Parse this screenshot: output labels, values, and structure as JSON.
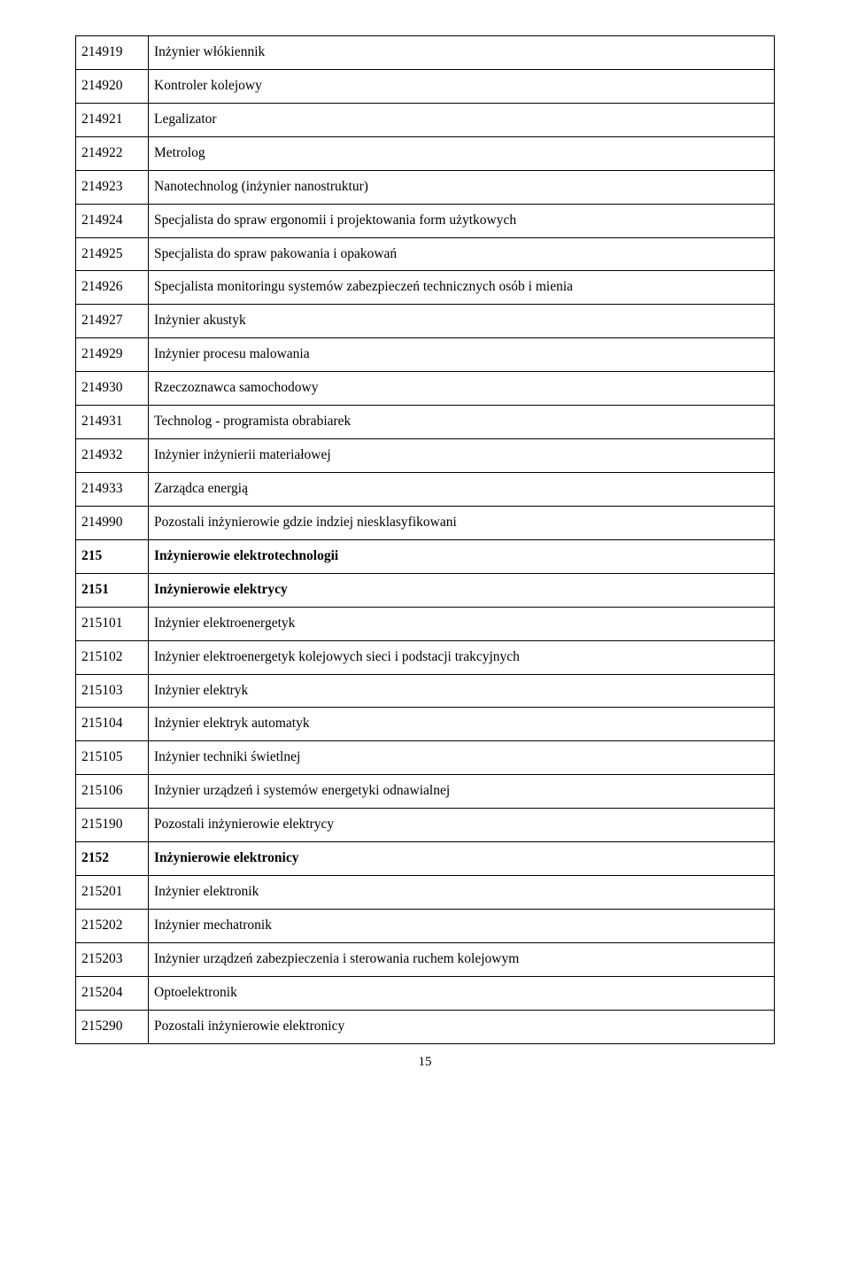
{
  "rows": [
    {
      "code": "214919",
      "label": "Inżynier włókiennik",
      "bold": false
    },
    {
      "code": "214920",
      "label": "Kontroler kolejowy",
      "bold": false
    },
    {
      "code": "214921",
      "label": "Legalizator",
      "bold": false
    },
    {
      "code": "214922",
      "label": "Metrolog",
      "bold": false
    },
    {
      "code": "214923",
      "label": "Nanotechnolog (inżynier nanostruktur)",
      "bold": false
    },
    {
      "code": "214924",
      "label": "Specjalista do spraw ergonomii i projektowania form użytkowych",
      "bold": false
    },
    {
      "code": "214925",
      "label": "Specjalista do spraw pakowania i opakowań",
      "bold": false
    },
    {
      "code": "214926",
      "label": "Specjalista monitoringu systemów zabezpieczeń technicznych osób i mienia",
      "bold": false
    },
    {
      "code": "214927",
      "label": "Inżynier akustyk",
      "bold": false
    },
    {
      "code": "214929",
      "label": "Inżynier procesu malowania",
      "bold": false
    },
    {
      "code": "214930",
      "label": "Rzeczoznawca samochodowy",
      "bold": false
    },
    {
      "code": "214931",
      "label": "Technolog - programista obrabiarek",
      "bold": false
    },
    {
      "code": "214932",
      "label": "Inżynier inżynierii materiałowej",
      "bold": false
    },
    {
      "code": "214933",
      "label": "Zarządca energią",
      "bold": false
    },
    {
      "code": "214990",
      "label": "Pozostali inżynierowie gdzie indziej niesklasyfikowani",
      "bold": false
    },
    {
      "code": "215",
      "label": "Inżynierowie elektrotechnologii",
      "bold": true
    },
    {
      "code": "2151",
      "label": "Inżynierowie elektrycy",
      "bold": true
    },
    {
      "code": "215101",
      "label": "Inżynier elektroenergetyk",
      "bold": false
    },
    {
      "code": "215102",
      "label": "Inżynier elektroenergetyk kolejowych sieci i podstacji trakcyjnych",
      "bold": false
    },
    {
      "code": "215103",
      "label": "Inżynier elektryk",
      "bold": false
    },
    {
      "code": "215104",
      "label": "Inżynier elektryk automatyk",
      "bold": false
    },
    {
      "code": "215105",
      "label": "Inżynier techniki świetlnej",
      "bold": false
    },
    {
      "code": "215106",
      "label": "Inżynier urządzeń i systemów energetyki odnawialnej",
      "bold": false
    },
    {
      "code": "215190",
      "label": "Pozostali inżynierowie elektrycy",
      "bold": false
    },
    {
      "code": "2152",
      "label": "Inżynierowie elektronicy",
      "bold": true
    },
    {
      "code": "215201",
      "label": "Inżynier elektronik",
      "bold": false
    },
    {
      "code": "215202",
      "label": "Inżynier mechatronik",
      "bold": false
    },
    {
      "code": "215203",
      "label": "Inżynier urządzeń zabezpieczenia i sterowania ruchem kolejowym",
      "bold": false
    },
    {
      "code": "215204",
      "label": "Optoelektronik",
      "bold": false
    },
    {
      "code": "215290",
      "label": "Pozostali inżynierowie elektronicy",
      "bold": false
    }
  ],
  "page_number": "15"
}
